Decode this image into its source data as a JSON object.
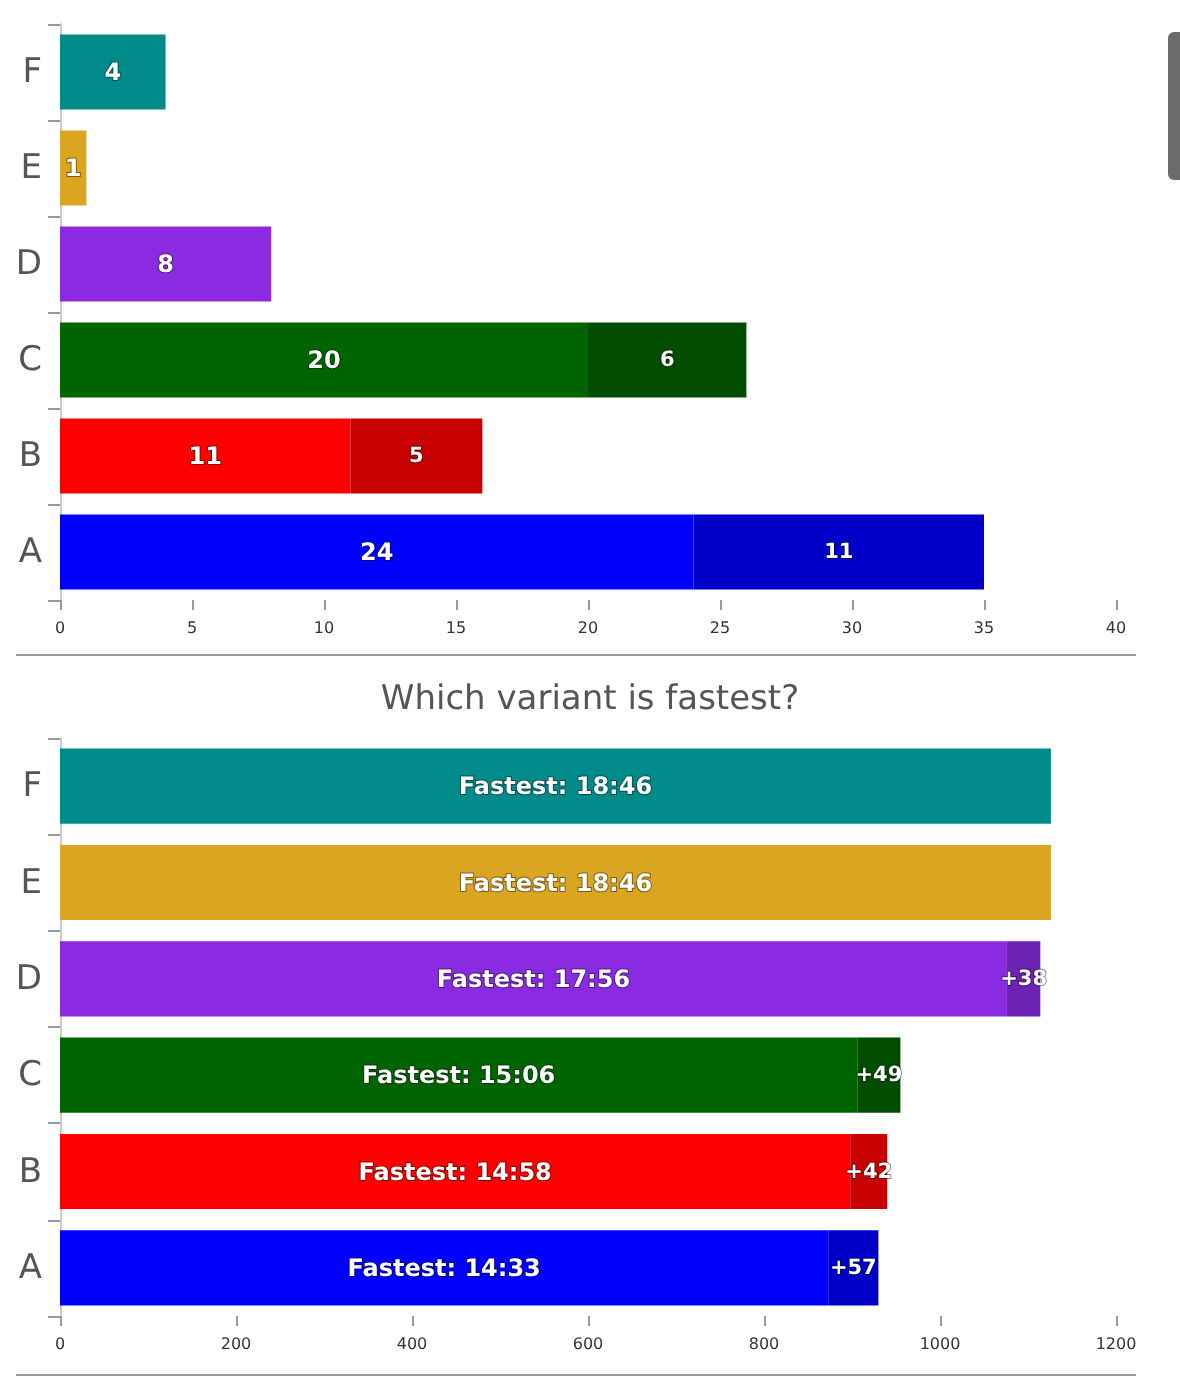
{
  "chart_data": [
    {
      "type": "bar",
      "orientation": "horizontal",
      "stacked": true,
      "categories": [
        "F",
        "E",
        "D",
        "C",
        "B",
        "A"
      ],
      "series": [
        {
          "colors": [
            "#008b8b",
            "#daa520",
            "#8a2be2",
            "#006400",
            "#ff0000",
            "#0000ff"
          ],
          "values": [
            4,
            1,
            8,
            20,
            11,
            24
          ]
        },
        {
          "colors": [
            null,
            null,
            null,
            "#004d00",
            "#c80000",
            "#0000c8"
          ],
          "values": [
            null,
            null,
            null,
            6,
            5,
            11
          ]
        }
      ],
      "xlim": [
        0,
        40
      ],
      "xticks": [
        0,
        5,
        10,
        15,
        20,
        25,
        30,
        35,
        40
      ],
      "data_labels": true
    },
    {
      "type": "bar",
      "orientation": "horizontal",
      "stacked": true,
      "title": "Which variant is fastest?",
      "categories": [
        "F",
        "E",
        "D",
        "C",
        "B",
        "A"
      ],
      "series": [
        {
          "colors": [
            "#008b8b",
            "#daa520",
            "#8a2be2",
            "#006400",
            "#ff0000",
            "#0000ff"
          ],
          "values": [
            1126,
            1126,
            1076,
            906,
            898,
            873
          ],
          "value_labels": [
            "Fastest: 18:46",
            "Fastest: 18:46",
            "Fastest: 17:56",
            "Fastest: 15:06",
            "Fastest: 14:58",
            "Fastest: 14:33"
          ]
        },
        {
          "colors": [
            null,
            null,
            "#6c22b5",
            "#004d00",
            "#c80000",
            "#0000c8"
          ],
          "values": [
            null,
            null,
            38,
            49,
            42,
            57
          ],
          "value_labels": [
            null,
            null,
            "+38",
            "+49",
            "+42",
            "+57"
          ]
        }
      ],
      "xlim": [
        0,
        1200
      ],
      "xticks": [
        0,
        200,
        400,
        600,
        800,
        1000,
        1200
      ]
    }
  ]
}
